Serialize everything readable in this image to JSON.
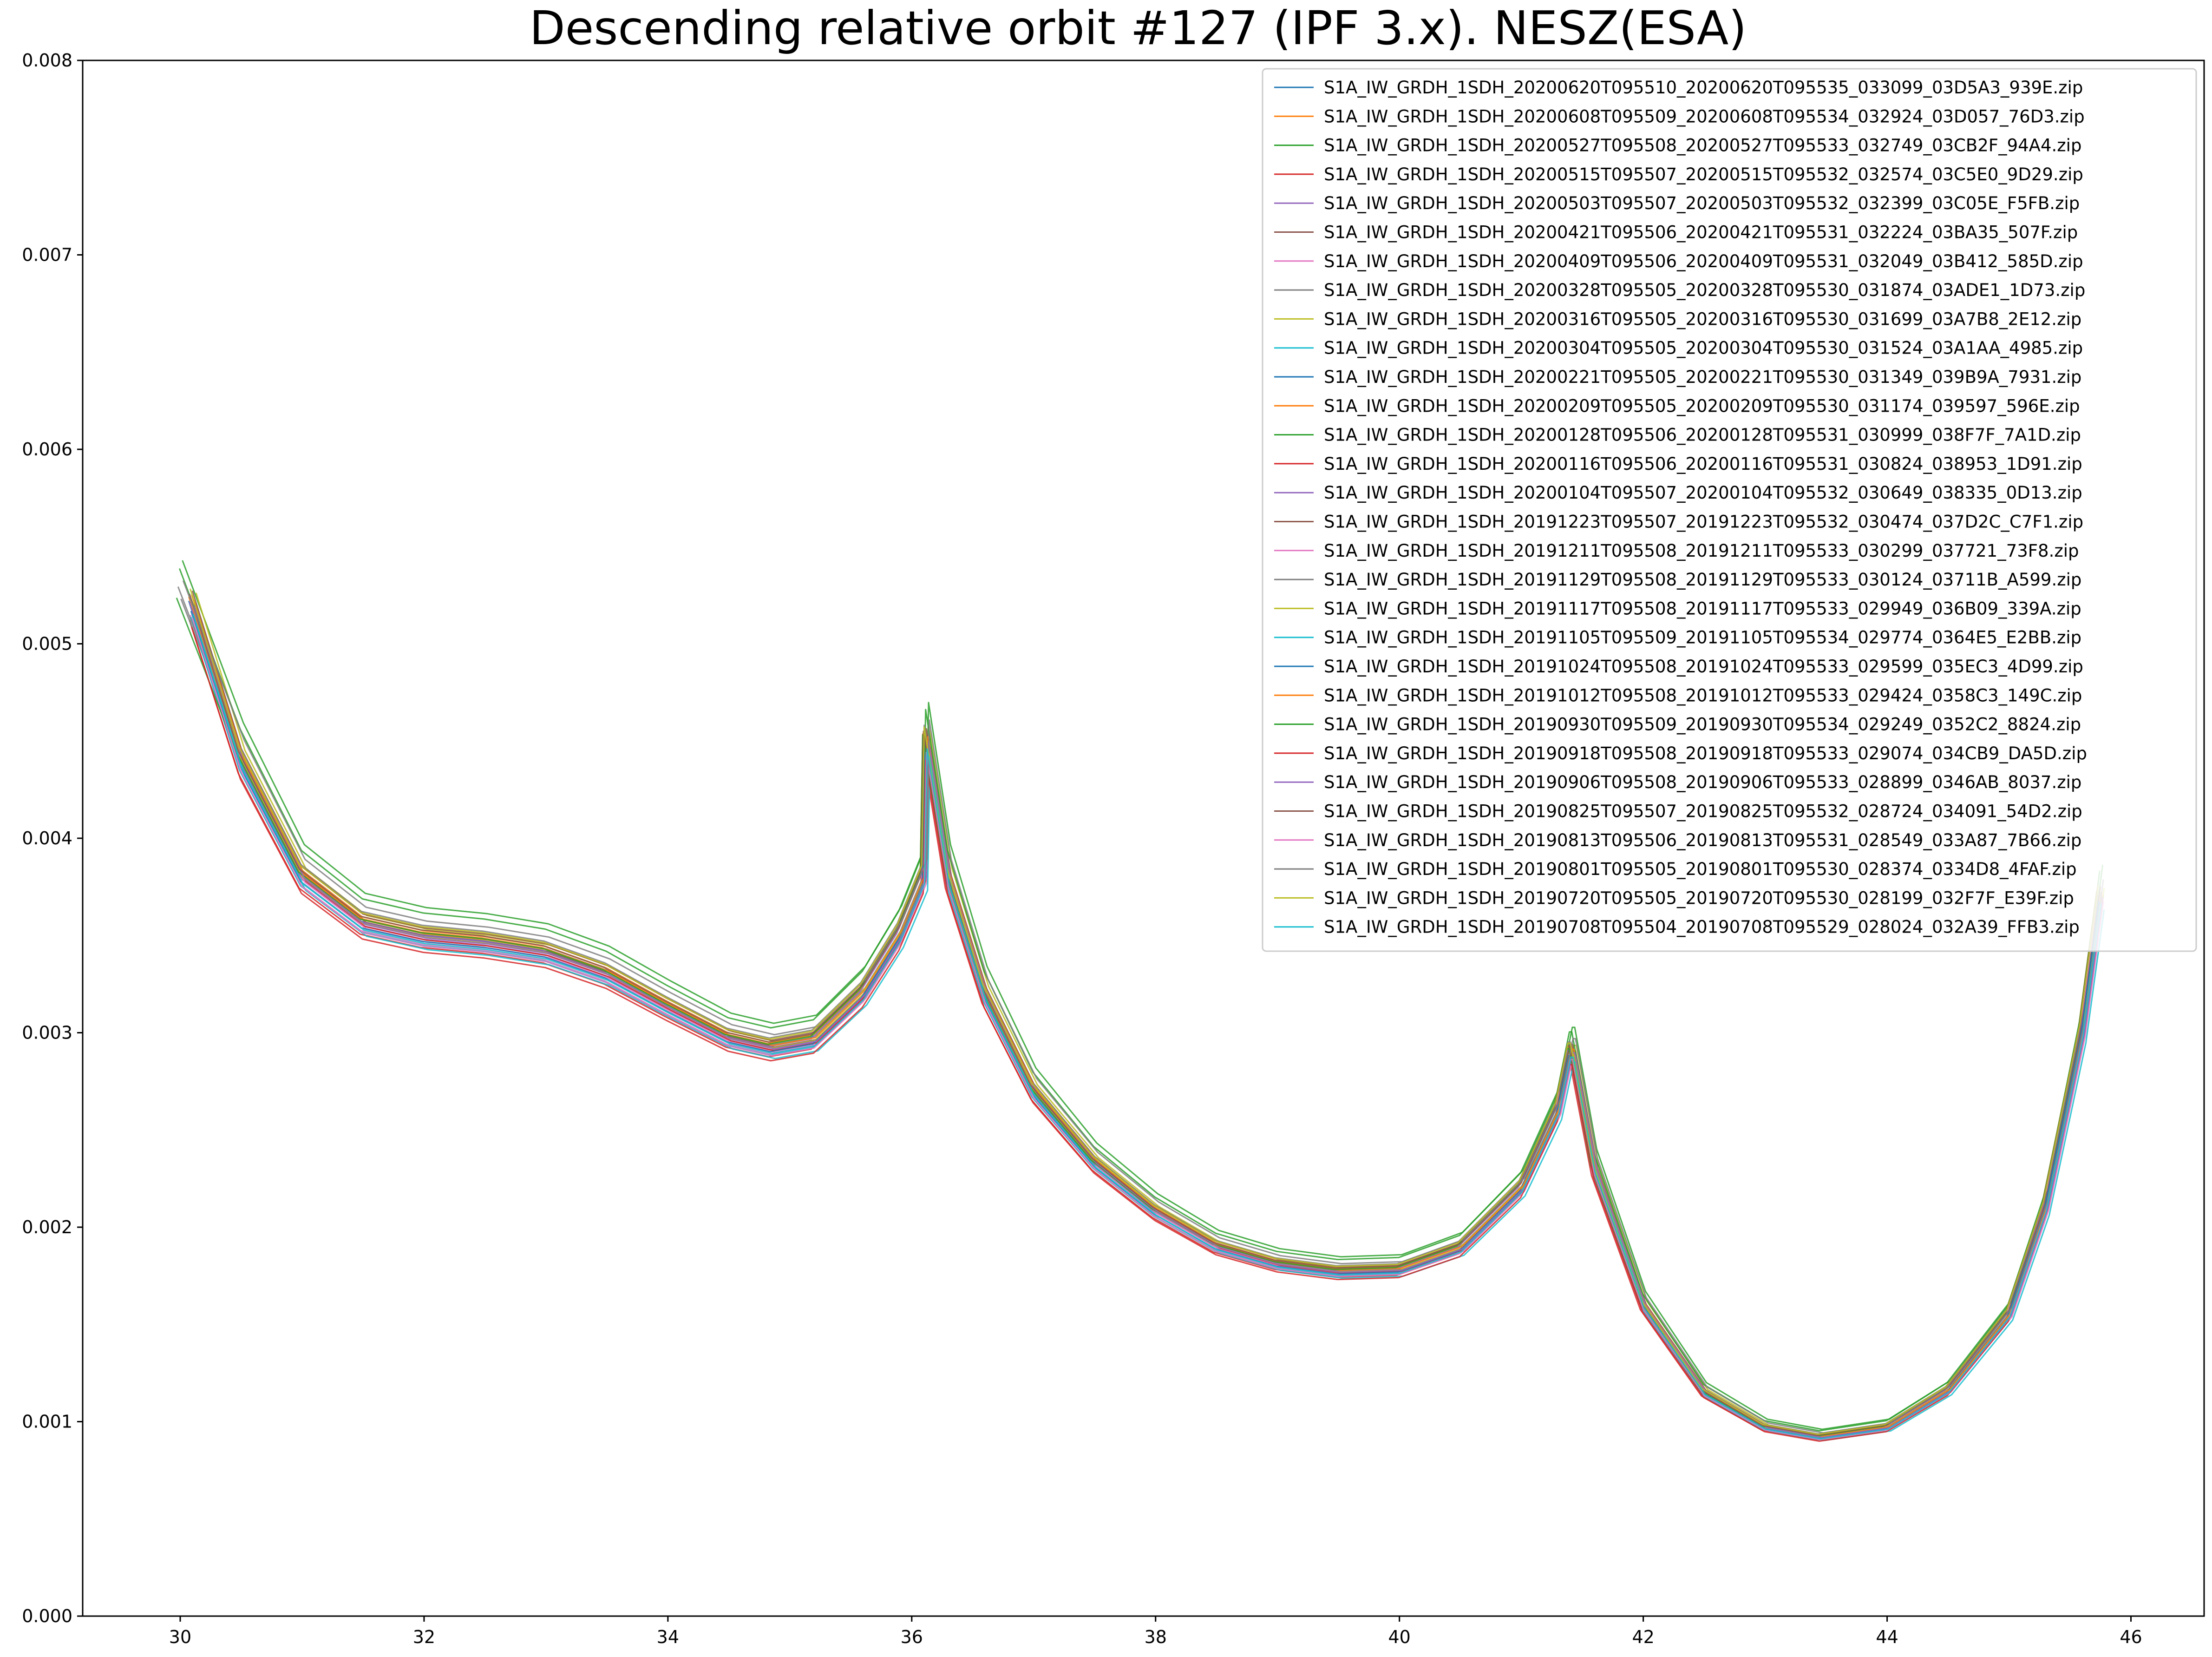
{
  "chart_data": {
    "type": "line",
    "title": "Descending relative orbit #127 (IPF 3.x). NESZ(ESA)",
    "xlabel": "",
    "ylabel": "",
    "xlim": [
      29.2,
      46.6
    ],
    "ylim": [
      0,
      0.008
    ],
    "x_ticks": [
      "30",
      "32",
      "34",
      "36",
      "38",
      "40",
      "42",
      "44",
      "46"
    ],
    "y_ticks": [
      "0.000",
      "0.001",
      "0.002",
      "0.003",
      "0.004",
      "0.005",
      "0.006",
      "0.007",
      "0.008"
    ],
    "grid": false,
    "legend_position": "top-right",
    "base_curve": {
      "x": [
        30.1,
        30.5,
        31.0,
        31.5,
        32.0,
        32.5,
        33.0,
        33.5,
        34.0,
        34.5,
        34.85,
        35.2,
        35.6,
        35.9,
        36.1,
        36.12,
        36.3,
        36.6,
        37.0,
        37.5,
        38.0,
        38.5,
        39.0,
        39.5,
        40.0,
        40.5,
        41.0,
        41.3,
        41.4,
        41.42,
        41.6,
        42.0,
        42.5,
        43.0,
        43.45,
        44.0,
        44.5,
        45.0,
        45.3,
        45.6,
        45.75
      ],
      "y": [
        0.0052,
        0.0044,
        0.0038,
        0.00356,
        0.00349,
        0.00346,
        0.00341,
        0.0033,
        0.00313,
        0.00297,
        0.00292,
        0.00296,
        0.0032,
        0.0035,
        0.0038,
        0.0045,
        0.0038,
        0.0032,
        0.0027,
        0.00233,
        0.00208,
        0.0019,
        0.00181,
        0.00177,
        0.00178,
        0.00189,
        0.0022,
        0.0026,
        0.0029,
        0.0029,
        0.0023,
        0.0016,
        0.00115,
        0.00097,
        0.00092,
        0.00097,
        0.00116,
        0.00155,
        0.0021,
        0.003,
        0.0037
      ]
    },
    "series": [
      {
        "name": "S1A_IW_GRDH_1SDH_20200620T095510_20200620T095535_033099_03D5A3_939E.zip",
        "scale": 1.004,
        "color": "#1f77b4"
      },
      {
        "name": "S1A_IW_GRDH_1SDH_20200608T095509_20200608T095534_032924_03D057_76D3.zip",
        "scale": 1.01,
        "color": "#ff7f0e"
      },
      {
        "name": "S1A_IW_GRDH_1SDH_20200527T095508_20200527T095533_032749_03CB2F_94A4.zip",
        "scale": 1.044,
        "color": "#2ca02c"
      },
      {
        "name": "S1A_IW_GRDH_1SDH_20200515T095507_20200515T095532_032574_03C5E0_9D29.zip",
        "scale": 0.985,
        "color": "#d62728"
      },
      {
        "name": "S1A_IW_GRDH_1SDH_20200503T095507_20200503T095532_032399_03C05E_F5FB.zip",
        "scale": 0.997,
        "color": "#9467bd"
      },
      {
        "name": "S1A_IW_GRDH_1SDH_20200421T095506_20200421T095531_032224_03BA35_507F.zip",
        "scale": 1.002,
        "color": "#8c564b"
      },
      {
        "name": "S1A_IW_GRDH_1SDH_20200409T095506_20200409T095531_032049_03B412_585D.zip",
        "scale": 0.99,
        "color": "#e377c2"
      },
      {
        "name": "S1A_IW_GRDH_1SDH_20200328T095505_20200328T095530_031874_03ADE1_1D73.zip",
        "scale": 1.006,
        "color": "#7f7f7f"
      },
      {
        "name": "S1A_IW_GRDH_1SDH_20200316T095505_20200316T095530_031699_03A7B8_2E12.zip",
        "scale": 1.012,
        "color": "#bcbd22"
      },
      {
        "name": "S1A_IW_GRDH_1SDH_20200304T095505_20200304T095530_031524_03A1AA_4985.zip",
        "scale": 0.988,
        "color": "#17becf"
      },
      {
        "name": "S1A_IW_GRDH_1SDH_20200221T095505_20200221T095530_031349_039B9A_7931.zip",
        "scale": 1.0,
        "color": "#1f77b4"
      },
      {
        "name": "S1A_IW_GRDH_1SDH_20200209T095505_20200209T095530_031174_039597_596E.zip",
        "scale": 1.008,
        "color": "#ff7f0e"
      },
      {
        "name": "S1A_IW_GRDH_1SDH_20200128T095506_20200128T095531_030999_038F7F_7A1D.zip",
        "scale": 1.036,
        "color": "#2ca02c"
      },
      {
        "name": "S1A_IW_GRDH_1SDH_20200116T095506_20200116T095531_030824_038953_1D91.zip",
        "scale": 0.996,
        "color": "#d62728"
      },
      {
        "name": "S1A_IW_GRDH_1SDH_20200104T095507_20200104T095532_030649_038335_0D13.zip",
        "scale": 1.003,
        "color": "#9467bd"
      },
      {
        "name": "S1A_IW_GRDH_1SDH_20191223T095507_20191223T095532_030474_037D2C_C7F1.zip",
        "scale": 1.014,
        "color": "#8c564b"
      },
      {
        "name": "S1A_IW_GRDH_1SDH_20191211T095508_20191211T095533_030299_037721_73F8.zip",
        "scale": 0.993,
        "color": "#e377c2"
      },
      {
        "name": "S1A_IW_GRDH_1SDH_20191129T095508_20191129T095533_030124_03711B_A599.zip",
        "scale": 1.018,
        "color": "#7f7f7f"
      },
      {
        "name": "S1A_IW_GRDH_1SDH_20191117T095508_20191117T095533_029949_036B09_339A.zip",
        "scale": 1.0,
        "color": "#bcbd22"
      },
      {
        "name": "S1A_IW_GRDH_1SDH_20191105T095509_20191105T095534_029774_0364E5_E2BB.zip",
        "scale": 0.982,
        "color": "#17becf"
      },
      {
        "name": "S1A_IW_GRDH_1SDH_20191024T095508_20191024T095533_029599_035EC3_4D99.zip",
        "scale": 0.994,
        "color": "#1f77b4"
      },
      {
        "name": "S1A_IW_GRDH_1SDH_20191012T095508_20191012T095533_029424_0358C3_149C.zip",
        "scale": 1.005,
        "color": "#ff7f0e"
      },
      {
        "name": "S1A_IW_GRDH_1SDH_20190930T095509_20190930T095534_029249_0352C2_8824.zip",
        "scale": 1.007,
        "color": "#2ca02c"
      },
      {
        "name": "S1A_IW_GRDH_1SDH_20190918T095508_20190918T095533_029074_034CB9_DA5D.zip",
        "scale": 0.978,
        "color": "#d62728"
      },
      {
        "name": "S1A_IW_GRDH_1SDH_20190906T095508_20190906T095533_028899_0346AB_8037.zip",
        "scale": 0.999,
        "color": "#9467bd"
      },
      {
        "name": "S1A_IW_GRDH_1SDH_20190825T095507_20190825T095532_028724_034091_54D2.zip",
        "scale": 1.011,
        "color": "#8c564b"
      },
      {
        "name": "S1A_IW_GRDH_1SDH_20190813T095506_20190813T095531_028549_033A87_7B66.zip",
        "scale": 0.987,
        "color": "#e377c2"
      },
      {
        "name": "S1A_IW_GRDH_1SDH_20190801T095505_20190801T095530_028374_0334D8_4FAF.zip",
        "scale": 1.024,
        "color": "#7f7f7f"
      },
      {
        "name": "S1A_IW_GRDH_1SDH_20190720T095505_20190720T095530_028199_032F7F_E39F.zip",
        "scale": 1.016,
        "color": "#bcbd22"
      },
      {
        "name": "S1A_IW_GRDH_1SDH_20190708T095504_20190708T095529_028024_032A39_FFB3.zip",
        "scale": 0.991,
        "color": "#17becf"
      }
    ]
  }
}
